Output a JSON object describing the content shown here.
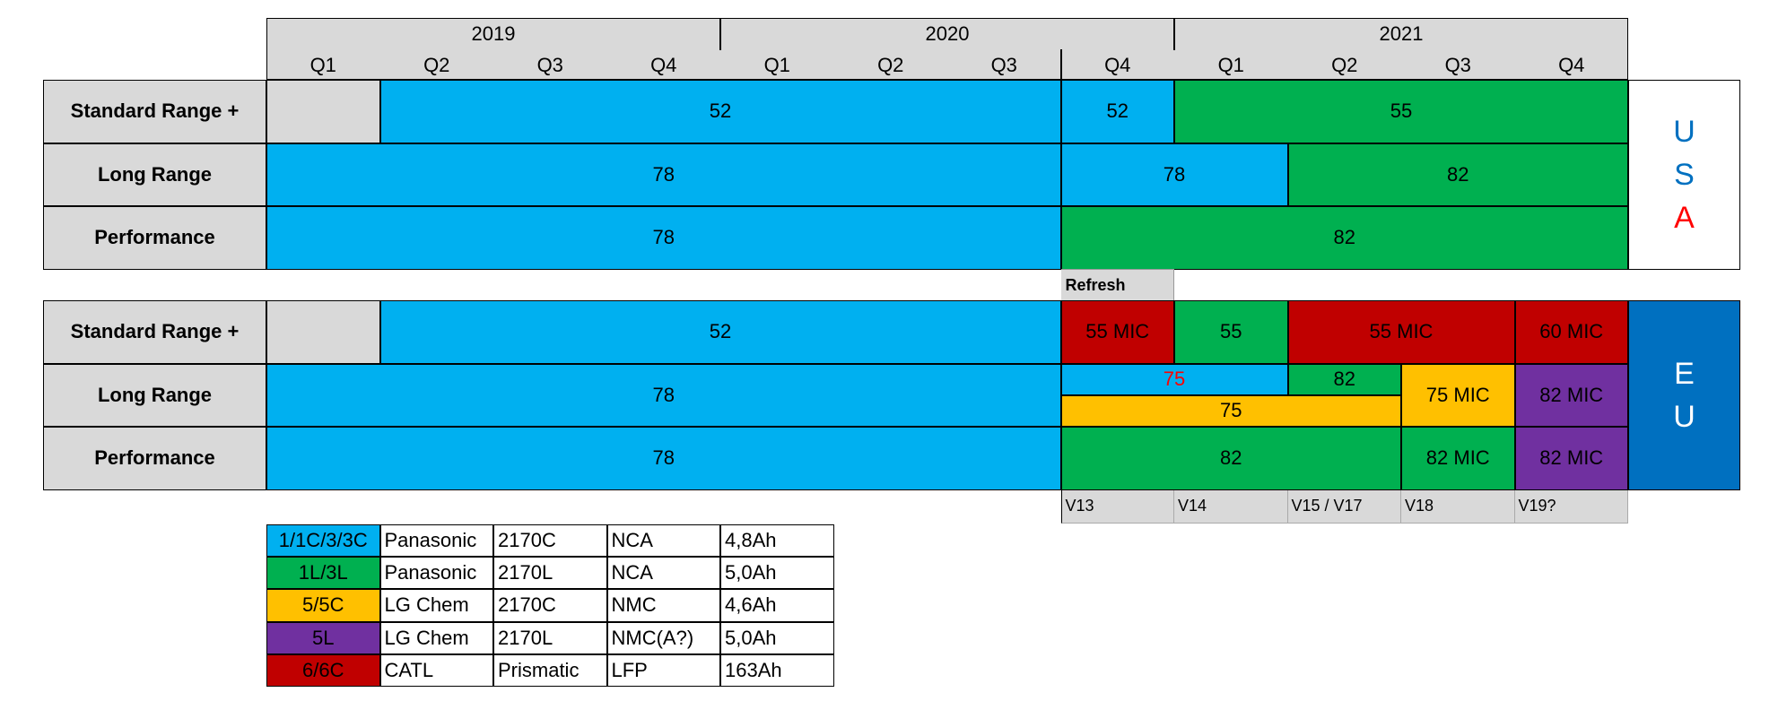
{
  "colors": {
    "panasonic_c": "#00b0f0",
    "panasonic_l": "#00b050",
    "lg_c": "#ffc000",
    "lg_l": "#7030a0",
    "catl": "#c00000",
    "grey": "#d9d9d9",
    "eu_blue": "#0070c0",
    "usa_blue": "#0070c0",
    "usa_red": "#ff0000"
  },
  "header": {
    "years": [
      "2019",
      "2020",
      "2021"
    ],
    "quarters": [
      "Q1",
      "Q2",
      "Q3",
      "Q4",
      "Q1",
      "Q2",
      "Q3",
      "Q4",
      "Q1",
      "Q2",
      "Q3",
      "Q4"
    ]
  },
  "usa": {
    "letters": [
      "U",
      "S",
      "A"
    ],
    "rows": [
      {
        "label": "Standard Range +",
        "segments": [
          {
            "start": 0,
            "end": 1,
            "color": "grey",
            "text": ""
          },
          {
            "start": 1,
            "end": 7,
            "color": "panasonic_c",
            "text": "52"
          },
          {
            "start": 7,
            "end": 8,
            "color": "panasonic_c",
            "text": "52"
          },
          {
            "start": 8,
            "end": 12,
            "color": "panasonic_l",
            "text": "55"
          }
        ]
      },
      {
        "label": "Long Range",
        "segments": [
          {
            "start": 0,
            "end": 7,
            "color": "panasonic_c",
            "text": "78"
          },
          {
            "start": 7,
            "end": 9,
            "color": "panasonic_c",
            "text": "78"
          },
          {
            "start": 9,
            "end": 12,
            "color": "panasonic_l",
            "text": "82"
          }
        ]
      },
      {
        "label": "Performance",
        "segments": [
          {
            "start": 0,
            "end": 7,
            "color": "panasonic_c",
            "text": "78"
          },
          {
            "start": 7,
            "end": 12,
            "color": "panasonic_l",
            "text": "82"
          }
        ]
      }
    ]
  },
  "refresh_label": "Refresh",
  "eu": {
    "letters": [
      "E",
      "U"
    ],
    "rows": [
      {
        "label": "Standard Range +",
        "segments": [
          {
            "start": 0,
            "end": 1,
            "color": "grey",
            "text": ""
          },
          {
            "start": 1,
            "end": 7,
            "color": "panasonic_c",
            "text": "52"
          },
          {
            "start": 7,
            "end": 8,
            "color": "catl",
            "text": "55 MIC"
          },
          {
            "start": 8,
            "end": 9,
            "color": "panasonic_l",
            "text": "55"
          },
          {
            "start": 9,
            "end": 11,
            "color": "catl",
            "text": "55 MIC"
          },
          {
            "start": 11,
            "end": 12,
            "color": "catl",
            "text": "60 MIC"
          }
        ]
      },
      {
        "label": "Long Range",
        "segments": [
          {
            "start": 0,
            "end": 7,
            "color": "panasonic_c",
            "text": "78"
          },
          {
            "start": 7,
            "end": 9,
            "color": "panasonic_c",
            "text": "75",
            "half": "top",
            "text_color": "#ff0000"
          },
          {
            "start": 9,
            "end": 10,
            "color": "panasonic_l",
            "text": "82",
            "half": "top"
          },
          {
            "start": 7,
            "end": 10,
            "color": "lg_c",
            "text": "75",
            "half": "bottom"
          },
          {
            "start": 10,
            "end": 11,
            "color": "lg_c",
            "text": "75 MIC"
          },
          {
            "start": 11,
            "end": 12,
            "color": "lg_l",
            "text": "82 MIC"
          }
        ]
      },
      {
        "label": "Performance",
        "segments": [
          {
            "start": 0,
            "end": 7,
            "color": "panasonic_c",
            "text": "78"
          },
          {
            "start": 7,
            "end": 10,
            "color": "panasonic_l",
            "text": "82"
          },
          {
            "start": 10,
            "end": 11,
            "color": "panasonic_l",
            "text": "82 MIC"
          },
          {
            "start": 11,
            "end": 12,
            "color": "lg_l",
            "text": "82 MIC"
          }
        ]
      }
    ]
  },
  "versions": [
    {
      "start": 7,
      "end": 8,
      "text": "V13"
    },
    {
      "start": 8,
      "end": 9,
      "text": "V14"
    },
    {
      "start": 9,
      "end": 10,
      "text": "V15 / V17"
    },
    {
      "start": 10,
      "end": 11,
      "text": "V18"
    },
    {
      "start": 11,
      "end": 12,
      "text": "V19?"
    }
  ],
  "legend": [
    {
      "code": "1/1C/3/3C",
      "color": "panasonic_c",
      "maker": "Panasonic",
      "cell": "2170C",
      "chem": "NCA",
      "capacity": "4,8Ah"
    },
    {
      "code": "1L/3L",
      "color": "panasonic_l",
      "maker": "Panasonic",
      "cell": "2170L",
      "chem": "NCA",
      "capacity": "5,0Ah"
    },
    {
      "code": "5/5C",
      "color": "lg_c",
      "maker": "LG Chem",
      "cell": "2170C",
      "chem": "NMC",
      "capacity": "4,6Ah"
    },
    {
      "code": "5L",
      "color": "lg_l",
      "maker": "LG Chem",
      "cell": "2170L",
      "chem": "NMC(A?)",
      "capacity": "5,0Ah"
    },
    {
      "code": "6/6C",
      "color": "catl",
      "maker": "CATL",
      "cell": "Prismatic",
      "chem": "LFP",
      "capacity": "163Ah"
    }
  ],
  "chart_data": {
    "type": "table",
    "title": "",
    "columns": [
      "2019 Q1",
      "2019 Q2",
      "2019 Q3",
      "2019 Q4",
      "2020 Q1",
      "2020 Q2",
      "2020 Q3",
      "2020 Q4",
      "2021 Q1",
      "2021 Q2",
      "2021 Q3",
      "2021 Q4"
    ],
    "usa": {
      "Standard Range +": [
        "",
        "52",
        "52",
        "52",
        "52",
        "52",
        "52",
        "52",
        "55",
        "55",
        "55",
        "55"
      ],
      "Long Range": [
        "78",
        "78",
        "78",
        "78",
        "78",
        "78",
        "78",
        "78",
        "78",
        "82",
        "82",
        "82"
      ],
      "Performance": [
        "78",
        "78",
        "78",
        "78",
        "78",
        "78",
        "78",
        "82",
        "82",
        "82",
        "82",
        "82"
      ]
    },
    "eu": {
      "Standard Range +": [
        "",
        "52",
        "52",
        "52",
        "52",
        "52",
        "52",
        "55 MIC",
        "55",
        "55 MIC",
        "55 MIC",
        "60 MIC"
      ],
      "Long Range": [
        "78",
        "78",
        "78",
        "78",
        "78",
        "78",
        "78",
        "75 / 75",
        "75 / 75",
        "82 / 75",
        "75 MIC",
        "82 MIC"
      ],
      "Performance": [
        "78",
        "78",
        "78",
        "78",
        "78",
        "78",
        "78",
        "82",
        "82",
        "82",
        "82 MIC",
        "82 MIC"
      ]
    }
  }
}
